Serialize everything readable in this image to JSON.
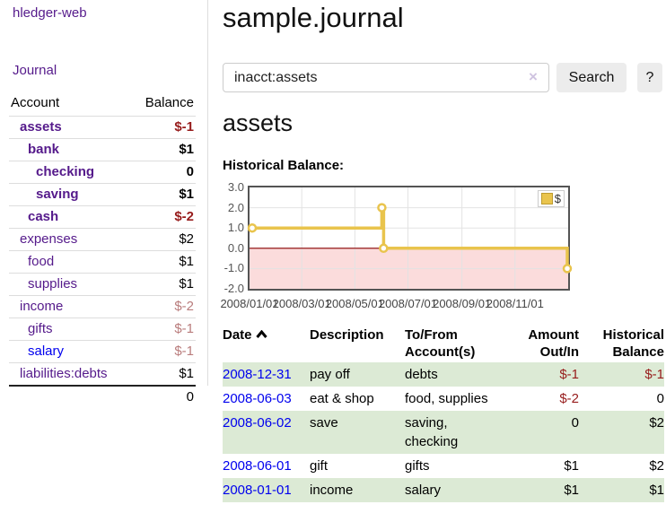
{
  "colors": {
    "link_purple": "#551a8b",
    "link_blue": "#0000ee",
    "negative_strong": "#971c1c",
    "negative_soft": "#b97c7c",
    "row_green": "#dcead5",
    "chart_line_gold": "#e9c44d",
    "chart_negative_fill": "#fbdcdc",
    "chart_zero_line": "#8b0000"
  },
  "sidebar": {
    "app_title": "hledger-web",
    "journal_link": "Journal",
    "table": {
      "account_header": "Account",
      "balance_header": "Balance",
      "rows": [
        {
          "name": "assets",
          "balance": "$-1",
          "indent": 0,
          "bold": true,
          "neg": "strong",
          "link": "purple"
        },
        {
          "name": "bank",
          "balance": "$1",
          "indent": 1,
          "bold": true,
          "link": "purple"
        },
        {
          "name": "checking",
          "balance": "0",
          "indent": 2,
          "bold": true,
          "link": "purple"
        },
        {
          "name": "saving",
          "balance": "$1",
          "indent": 2,
          "bold": true,
          "link": "purple"
        },
        {
          "name": "cash",
          "balance": "$-2",
          "indent": 1,
          "bold": true,
          "neg": "strong",
          "link": "purple"
        },
        {
          "name": "expenses",
          "balance": "$2",
          "indent": 0,
          "link": "purple"
        },
        {
          "name": "food",
          "balance": "$1",
          "indent": 1,
          "link": "purple"
        },
        {
          "name": "supplies",
          "balance": "$1",
          "indent": 1,
          "link": "purple"
        },
        {
          "name": "income",
          "balance": "$-2",
          "indent": 0,
          "neg": "soft",
          "link": "purple"
        },
        {
          "name": "gifts",
          "balance": "$-1",
          "indent": 1,
          "neg": "soft",
          "link": "purple"
        },
        {
          "name": "salary",
          "balance": "$-1",
          "indent": 1,
          "neg": "soft",
          "link": "blue"
        },
        {
          "name": "liabilities:debts",
          "balance": "$1",
          "indent": 0,
          "link": "purple"
        }
      ],
      "total": "0"
    }
  },
  "main": {
    "title": "sample.journal",
    "search": {
      "value": "inacct:assets",
      "clear_icon": "×",
      "search_button": "Search",
      "help_button": "?"
    },
    "account_heading": "assets",
    "chart_heading": "Historical Balance:",
    "legend_label": "$"
  },
  "chart_data": {
    "type": "line",
    "title": "Historical Balance:",
    "step": true,
    "series": [
      {
        "name": "$",
        "points": [
          [
            "2008-01-01",
            1
          ],
          [
            "2008-06-01",
            2
          ],
          [
            "2008-06-03",
            0
          ],
          [
            "2008-12-31",
            -1
          ]
        ]
      }
    ],
    "ylim": [
      -2,
      3
    ],
    "yticks": [
      "3.0",
      "2.0",
      "1.0",
      "0.0",
      "-1.0",
      "-2.0"
    ],
    "xticks": [
      "2008/01/01",
      "2008/03/01",
      "2008/05/01",
      "2008/07/01",
      "2008/09/01",
      "2008/11/01"
    ],
    "x_range": [
      "2008-01-01",
      "2008-12-31"
    ],
    "grid": true,
    "legend_position": "top-right",
    "negative_region_shaded": true
  },
  "register": {
    "headers": [
      "Date",
      "Description",
      "To/From Account(s)",
      "Amount Out/In",
      "Historical Balance"
    ],
    "sort_column": "Date",
    "sort_direction": "ascending",
    "rows": [
      {
        "date": "2008-12-31",
        "description": "pay off",
        "accounts": "debts",
        "amount": "$-1",
        "balance": "$-1",
        "amount_neg": true,
        "balance_neg": true,
        "green": true
      },
      {
        "date": "2008-06-03",
        "description": "eat & shop",
        "accounts": "food, supplies",
        "amount": "$-2",
        "balance": "0",
        "amount_neg": true,
        "balance_neg": false,
        "green": false
      },
      {
        "date": "2008-06-02",
        "description": "save",
        "accounts": "saving, checking",
        "amount": "0",
        "balance": "$2",
        "amount_neg": false,
        "balance_neg": false,
        "green": true
      },
      {
        "date": "2008-06-01",
        "description": "gift",
        "accounts": "gifts",
        "amount": "$1",
        "balance": "$2",
        "amount_neg": false,
        "balance_neg": false,
        "green": false
      },
      {
        "date": "2008-01-01",
        "description": "income",
        "accounts": "salary",
        "amount": "$1",
        "balance": "$1",
        "amount_neg": false,
        "balance_neg": false,
        "green": true
      }
    ]
  }
}
